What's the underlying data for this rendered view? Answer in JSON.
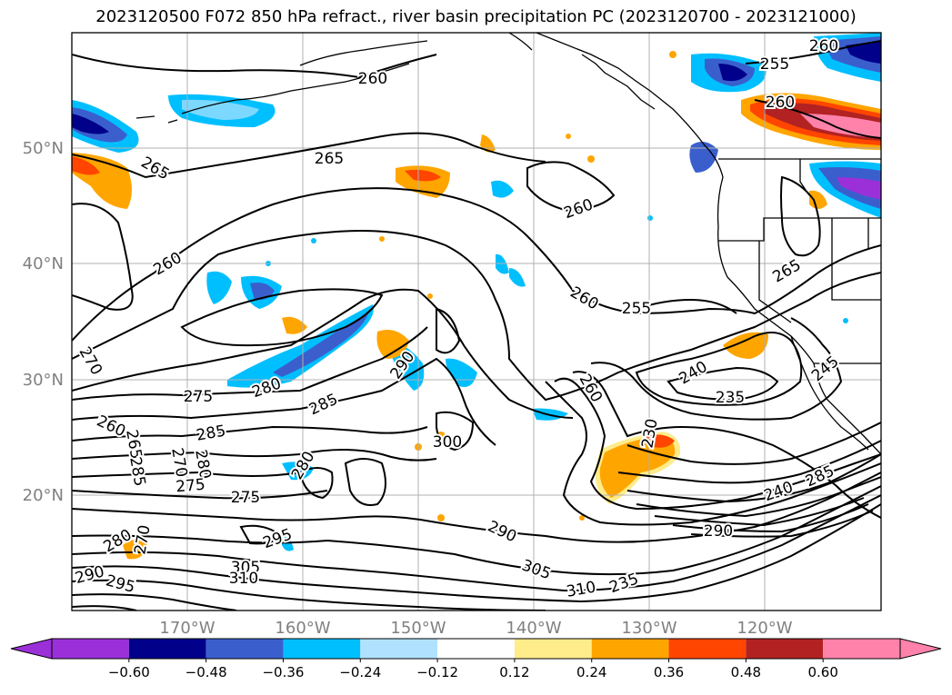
{
  "title": "2023120500 F072 850 hPa refract., river basin precipitation PC (2023120700 - 2023121000)",
  "chart_data": {
    "type": "map",
    "lat_ticks": [
      "50°N",
      "40°N",
      "30°N",
      "20°N"
    ],
    "lon_ticks": [
      "170°W",
      "160°W",
      "150°W",
      "140°W",
      "130°W",
      "120°W"
    ],
    "colorbar": {
      "ticks": [
        "−0.60",
        "−0.48",
        "−0.36",
        "−0.24",
        "−0.12",
        "0.12",
        "0.24",
        "0.36",
        "0.48",
        "0.60"
      ],
      "colors": [
        "#9b30d9",
        "#00008b",
        "#3a5fcd",
        "#00bfff",
        "#b0e2ff",
        "#ffffff",
        "#ffec8b",
        "#ffa500",
        "#ff4500",
        "#b22222",
        "#ff82ab"
      ],
      "extend": "both"
    },
    "contour_labels": [
      "260",
      "255",
      "260",
      "265",
      "260",
      "260",
      "265",
      "260",
      "255",
      "265",
      "260",
      "270",
      "275",
      "280",
      "285",
      "290",
      "240",
      "235",
      "245",
      "260",
      "230",
      "285",
      "260",
      "265",
      "270",
      "280",
      "285",
      "275",
      "280",
      "275",
      "295",
      "290",
      "300",
      "305",
      "310",
      "235",
      "240",
      "285",
      "290",
      "280",
      "270",
      "290",
      "295",
      "305",
      "310"
    ]
  }
}
